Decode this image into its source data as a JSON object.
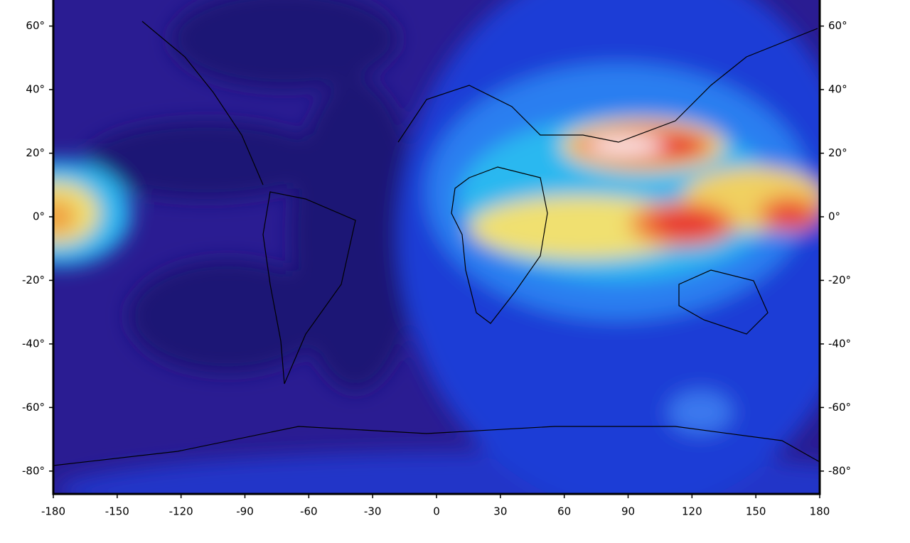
{
  "chart_data": {
    "type": "contour",
    "xlim": [
      -180,
      180
    ],
    "ylim": [
      -87.2,
      68.2
    ],
    "xticks": [
      -180,
      -150,
      -120,
      -90,
      -60,
      -30,
      0,
      30,
      60,
      90,
      120,
      150,
      180
    ],
    "yticks": [
      {
        "value": 60,
        "label": "60°"
      },
      {
        "value": 40,
        "label": "40°"
      },
      {
        "value": 20,
        "label": "20°"
      },
      {
        "value": 0,
        "label": "0°"
      },
      {
        "value": -20,
        "label": "-20°"
      },
      {
        "value": -40,
        "label": "-40°"
      },
      {
        "value": -60,
        "label": "-60°"
      },
      {
        "value": -80,
        "label": "-80°"
      }
    ]
  }
}
